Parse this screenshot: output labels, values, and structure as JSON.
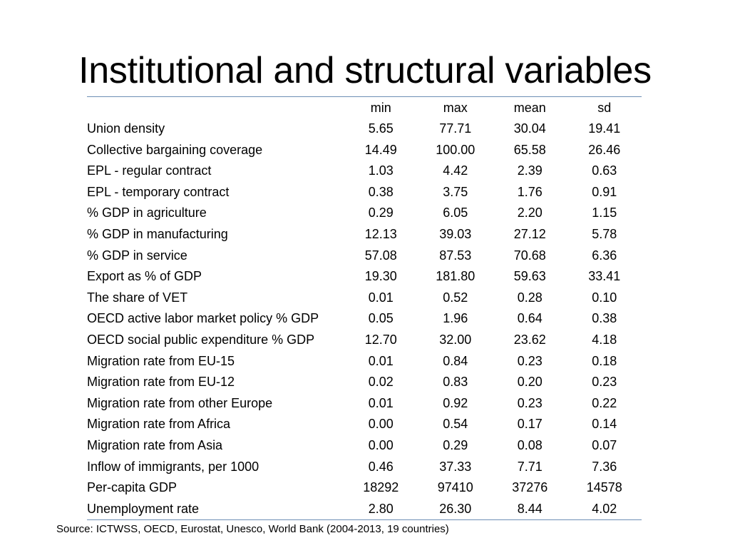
{
  "slide": {
    "title": "Institutional and structural variables",
    "source": "Source: ICTWSS, OECD, Eurostat, Unesco, World Bank (2004-2013, 19 countries)"
  },
  "table": {
    "columns": [
      "",
      "min",
      "max",
      "mean",
      "sd"
    ],
    "rows": [
      {
        "label": "Union density",
        "min": "5.65",
        "max": "77.71",
        "mean": "30.04",
        "sd": "19.41"
      },
      {
        "label": "Collective bargaining coverage",
        "min": "14.49",
        "max": "100.00",
        "mean": "65.58",
        "sd": "26.46"
      },
      {
        "label": "EPL - regular contract",
        "min": "1.03",
        "max": "4.42",
        "mean": "2.39",
        "sd": "0.63"
      },
      {
        "label": "EPL - temporary contract",
        "min": "0.38",
        "max": "3.75",
        "mean": "1.76",
        "sd": "0.91"
      },
      {
        "label": "% GDP in agriculture",
        "min": "0.29",
        "max": "6.05",
        "mean": "2.20",
        "sd": "1.15"
      },
      {
        "label": "% GDP in manufacturing",
        "min": "12.13",
        "max": "39.03",
        "mean": "27.12",
        "sd": "5.78"
      },
      {
        "label": "% GDP in service",
        "min": "57.08",
        "max": "87.53",
        "mean": "70.68",
        "sd": "6.36"
      },
      {
        "label": "Export as % of GDP",
        "min": "19.30",
        "max": "181.80",
        "mean": "59.63",
        "sd": "33.41"
      },
      {
        "label": "The share of VET",
        "min": "0.01",
        "max": "0.52",
        "mean": "0.28",
        "sd": "0.10"
      },
      {
        "label": "OECD active labor market policy % GDP",
        "min": "0.05",
        "max": "1.96",
        "mean": "0.64",
        "sd": "0.38"
      },
      {
        "label": "OECD social public expenditure % GDP",
        "min": "12.70",
        "max": "32.00",
        "mean": "23.62",
        "sd": "4.18"
      },
      {
        "label": "Migration rate from EU-15",
        "min": "0.01",
        "max": "0.84",
        "mean": "0.23",
        "sd": "0.18"
      },
      {
        "label": "Migration rate from EU-12",
        "min": "0.02",
        "max": "0.83",
        "mean": "0.20",
        "sd": "0.23"
      },
      {
        "label": "Migration rate from other Europe",
        "min": "0.01",
        "max": "0.92",
        "mean": "0.23",
        "sd": "0.22"
      },
      {
        "label": "Migration rate from Africa",
        "min": "0.00",
        "max": "0.54",
        "mean": "0.17",
        "sd": "0.14"
      },
      {
        "label": "Migration rate from Asia",
        "min": "0.00",
        "max": "0.29",
        "mean": "0.08",
        "sd": "0.07"
      },
      {
        "label": "Inflow of immigrants, per 1000",
        "min": "0.46",
        "max": "37.33",
        "mean": "7.71",
        "sd": "7.36"
      },
      {
        "label": "Per-capita GDP",
        "min": "18292",
        "max": "97410",
        "mean": "37276",
        "sd": "14578"
      },
      {
        "label": "Unemployment rate",
        "min": "2.80",
        "max": "26.30",
        "mean": "8.44",
        "sd": "4.02"
      }
    ]
  },
  "colors": {
    "rule": "#6d8fb5",
    "text": "#000000",
    "background": "#ffffff"
  }
}
